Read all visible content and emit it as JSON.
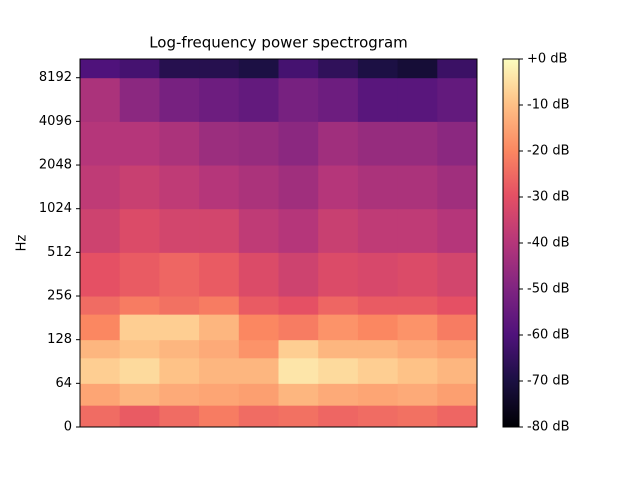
{
  "chart_data": {
    "type": "spectrogram",
    "title": "Log-frequency power spectrogram",
    "ylabel": "Hz",
    "yscale": "symlog",
    "linthresh": 64,
    "ylim": [
      0,
      11025
    ],
    "yticks": [
      0,
      64,
      128,
      256,
      512,
      1024,
      2048,
      4096,
      8192
    ],
    "y_edges": [
      0,
      32,
      64,
      96,
      128,
      192,
      256,
      512,
      1024,
      2048,
      4096,
      8192,
      11025
    ],
    "colormap": "magma",
    "clim": [
      -80,
      0
    ],
    "cticks": [
      {
        "value": 0,
        "label": "+0 dB"
      },
      {
        "value": -10,
        "label": "-10 dB"
      },
      {
        "value": -20,
        "label": "-20 dB"
      },
      {
        "value": -30,
        "label": "-30 dB"
      },
      {
        "value": -40,
        "label": "-40 dB"
      },
      {
        "value": -50,
        "label": "-50 dB"
      },
      {
        "value": -60,
        "label": "-60 dB"
      },
      {
        "value": -70,
        "label": "-70 dB"
      },
      {
        "value": -80,
        "label": "-80 dB"
      }
    ],
    "z": [
      [
        -25,
        -28,
        -25,
        -22,
        -25,
        -24,
        -26,
        -25,
        -24,
        -26
      ],
      [
        -15,
        -12,
        -14,
        -15,
        -16,
        -12,
        -14,
        -15,
        -14,
        -16
      ],
      [
        -8,
        -6,
        -10,
        -12,
        -12,
        -4,
        -6,
        -8,
        -10,
        -12
      ],
      [
        -12,
        -10,
        -12,
        -14,
        -18,
        -8,
        -12,
        -12,
        -14,
        -16
      ],
      [
        -20,
        -8,
        -8,
        -12,
        -20,
        -22,
        -18,
        -20,
        -18,
        -22
      ],
      [
        -25,
        -22,
        -24,
        -22,
        -28,
        -30,
        -26,
        -28,
        -28,
        -30
      ],
      [
        -30,
        -28,
        -26,
        -28,
        -32,
        -35,
        -32,
        -33,
        -32,
        -34
      ],
      [
        -35,
        -32,
        -34,
        -34,
        -38,
        -40,
        -36,
        -38,
        -38,
        -40
      ],
      [
        -38,
        -36,
        -38,
        -40,
        -42,
        -44,
        -40,
        -42,
        -42,
        -44
      ],
      [
        -40,
        -40,
        -42,
        -45,
        -46,
        -48,
        -44,
        -46,
        -46,
        -48
      ],
      [
        -42,
        -48,
        -52,
        -54,
        -56,
        -52,
        -54,
        -58,
        -58,
        -56
      ],
      [
        -60,
        -62,
        -68,
        -68,
        -70,
        -62,
        -66,
        -70,
        -72,
        -64
      ]
    ]
  }
}
